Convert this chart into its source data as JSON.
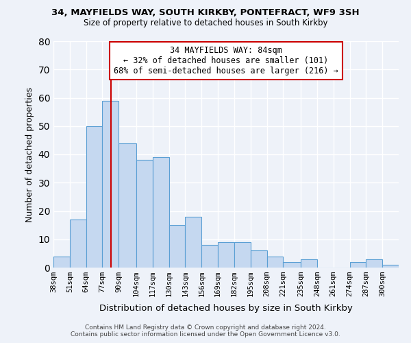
{
  "title1": "34, MAYFIELDS WAY, SOUTH KIRKBY, PONTEFRACT, WF9 3SH",
  "title2": "Size of property relative to detached houses in South Kirkby",
  "xlabel": "Distribution of detached houses by size in South Kirkby",
  "ylabel": "Number of detached properties",
  "categories": [
    "38sqm",
    "51sqm",
    "64sqm",
    "77sqm",
    "90sqm",
    "104sqm",
    "117sqm",
    "130sqm",
    "143sqm",
    "156sqm",
    "169sqm",
    "182sqm",
    "195sqm",
    "208sqm",
    "221sqm",
    "235sqm",
    "248sqm",
    "261sqm",
    "274sqm",
    "287sqm",
    "300sqm"
  ],
  "values": [
    4,
    17,
    50,
    59,
    44,
    38,
    39,
    15,
    18,
    8,
    9,
    9,
    6,
    4,
    2,
    3,
    0,
    0,
    2,
    3,
    1
  ],
  "bar_color": "#c5d8f0",
  "bar_edge_color": "#5a9fd4",
  "ylim": [
    0,
    80
  ],
  "yticks": [
    0,
    10,
    20,
    30,
    40,
    50,
    60,
    70,
    80
  ],
  "property_line_label": "34 MAYFIELDS WAY: 84sqm",
  "annotation_line1": "← 32% of detached houses are smaller (101)",
  "annotation_line2": "68% of semi-detached houses are larger (216) →",
  "annotation_box_color": "#ffffff",
  "annotation_box_edge_color": "#cc0000",
  "vline_color": "#cc0000",
  "bg_color": "#eef2f9",
  "grid_color": "#ffffff",
  "footer1": "Contains HM Land Registry data © Crown copyright and database right 2024.",
  "footer2": "Contains public sector information licensed under the Open Government Licence v3.0.",
  "bin_edges": [
    38,
    51,
    64,
    77,
    90,
    104,
    117,
    130,
    143,
    156,
    169,
    182,
    195,
    208,
    221,
    235,
    248,
    261,
    274,
    287,
    300,
    313
  ],
  "vline_x": 84
}
